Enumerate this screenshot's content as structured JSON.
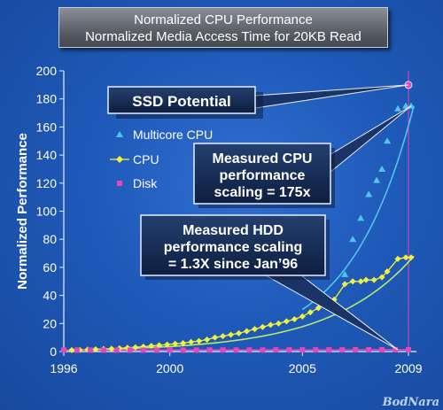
{
  "title_line1": "Normalized CPU Performance",
  "title_line2": "Normalized Media Access Time for 20KB Read",
  "watermark": "BodNara",
  "callouts": {
    "ssd": "SSD Potential",
    "cpu_line1": "Measured CPU",
    "cpu_line2": "performance",
    "cpu_line3": "scaling = 175x",
    "hdd_line1": "Measured HDD",
    "hdd_line2": "performance scaling",
    "hdd_line3": "= 1.3X since Jan’96"
  },
  "colors": {
    "background": "#1f59b8",
    "multicore": "#4fc6ee",
    "cpu": "#f2f23a",
    "disk": "#e04ab8",
    "trend_cpu": "#b8e86a"
  },
  "chart_data": {
    "type": "scatter",
    "title": "Normalized CPU Performance / Normalized Media Access Time for 20KB Read",
    "ylabel": "Normalized Performance",
    "xlabel": "",
    "xlim": [
      1996,
      2009.3
    ],
    "ylim": [
      0,
      200
    ],
    "x_ticks": [
      1996,
      2000,
      2005,
      2009
    ],
    "y_ticks": [
      0,
      20,
      40,
      60,
      80,
      100,
      120,
      140,
      160,
      180,
      200
    ],
    "grid": false,
    "legend_position": "top-left",
    "series": [
      {
        "name": "Multicore CPU",
        "marker": "triangle",
        "x": [
          2006.6,
          2006.9,
          2007.2,
          2007.5,
          2007.8,
          2008.0,
          2008.2,
          2008.6,
          2008.9,
          2009.1
        ],
        "y": [
          55,
          80,
          95,
          112,
          122,
          130,
          150,
          173,
          175,
          175
        ]
      },
      {
        "name": "CPU",
        "marker": "diamond",
        "x": [
          1996.0,
          1996.3,
          1996.6,
          1996.9,
          1997.2,
          1997.5,
          1997.8,
          1998.1,
          1998.4,
          1998.7,
          1999.0,
          1999.3,
          1999.6,
          1999.9,
          2000.2,
          2000.5,
          2000.8,
          2001.1,
          2001.4,
          2001.7,
          2002.0,
          2002.3,
          2002.6,
          2002.9,
          2003.2,
          2003.5,
          2003.8,
          2004.1,
          2004.4,
          2004.7,
          2005.0,
          2005.3,
          2005.6,
          2005.9,
          2006.2,
          2006.6,
          2006.9,
          2007.2,
          2007.4,
          2007.7,
          2008.0,
          2008.2,
          2008.6,
          2008.9,
          2009.1
        ],
        "y": [
          1,
          1,
          1.2,
          1.4,
          1.6,
          1.8,
          2,
          2.3,
          2.7,
          3,
          3.5,
          4,
          4.5,
          5,
          5.5,
          6,
          6.8,
          7.5,
          8.5,
          10,
          11,
          12,
          13,
          14.5,
          16,
          17.5,
          19,
          20,
          21.5,
          23,
          25,
          28,
          31,
          34,
          37,
          48,
          50,
          50,
          51,
          51,
          53,
          57,
          66,
          67,
          67
        ]
      },
      {
        "name": "Disk",
        "marker": "square",
        "x": [
          1996.0,
          1996.5,
          1997.0,
          1997.5,
          1998.0,
          1998.5,
          1999.0,
          1999.5,
          2000.0,
          2000.5,
          2001.0,
          2001.5,
          2002.0,
          2002.5,
          2003.0,
          2003.5,
          2004.0,
          2004.5,
          2005.0,
          2005.5,
          2006.0,
          2006.5,
          2007.0,
          2007.5,
          2008.0,
          2008.5,
          2009.0
        ],
        "y": [
          1,
          1,
          1,
          1,
          1,
          1,
          1,
          1,
          1,
          1,
          1,
          1.1,
          1.1,
          1.1,
          1.1,
          1.1,
          1.2,
          1.2,
          1.2,
          1.2,
          1.2,
          1.2,
          1.3,
          1.3,
          1.3,
          1.3,
          1.3
        ]
      },
      {
        "name": "SSD Potential",
        "marker": "circle",
        "x": [
          2009.0
        ],
        "y": [
          190
        ]
      }
    ]
  }
}
